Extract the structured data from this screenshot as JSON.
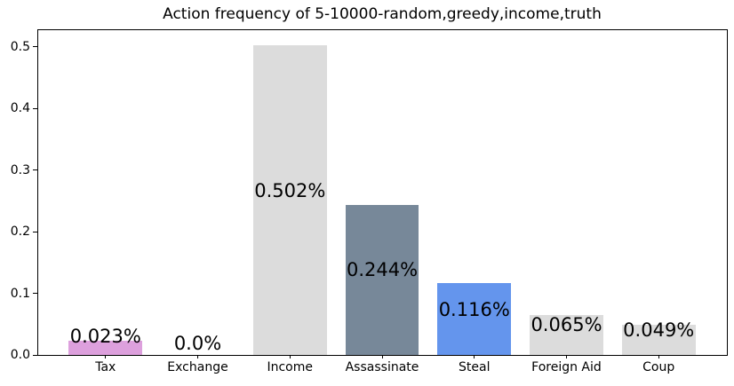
{
  "chart_data": {
    "type": "bar",
    "title": "Action frequency of 5-10000-random,greedy,income,truth",
    "categories": [
      "Tax",
      "Exchange",
      "Income",
      "Assassinate",
      "Steal",
      "Foreign Aid",
      "Coup"
    ],
    "values": [
      0.023,
      0.0,
      0.502,
      0.244,
      0.116,
      0.065,
      0.049
    ],
    "bar_labels": [
      "0.023%",
      "0.0%",
      "0.502%",
      "0.244%",
      "0.116%",
      "0.065%",
      "0.049%"
    ],
    "bar_colors": [
      "#dda0dd",
      "#dcdcdc",
      "#dcdcdc",
      "#778899",
      "#6495ed",
      "#dcdcdc",
      "#dcdcdc"
    ],
    "xlabel": "",
    "ylabel": "",
    "yticks": [
      0.0,
      0.1,
      0.2,
      0.3,
      0.4,
      0.5
    ],
    "ytick_labels": [
      "0.0",
      "0.1",
      "0.2",
      "0.3",
      "0.4",
      "0.5"
    ],
    "ylim": [
      0,
      0.527
    ],
    "grid": false,
    "legend": null,
    "spine_color": "#000000",
    "background_color": "#ffffff"
  }
}
